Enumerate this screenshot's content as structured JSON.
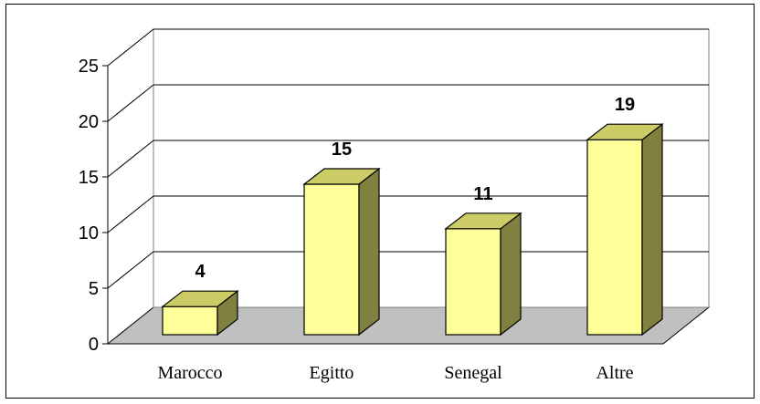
{
  "chart_data": {
    "type": "bar",
    "title": "",
    "xlabel": "",
    "ylabel": "",
    "categories": [
      "Marocco",
      "Egitto",
      "Senegal",
      "Altre"
    ],
    "values": [
      4,
      15,
      11,
      19
    ],
    "ylim": [
      0,
      25
    ],
    "yticks": [
      0,
      5,
      10,
      15,
      20,
      25
    ],
    "grid": true,
    "legend": "none",
    "style": "3d-column",
    "colors": {
      "bar_front": "#FFFF99",
      "bar_top": "#CCCC66",
      "bar_side": "#808040",
      "floor": "#C0C0C0",
      "gridline": "#000000"
    }
  }
}
